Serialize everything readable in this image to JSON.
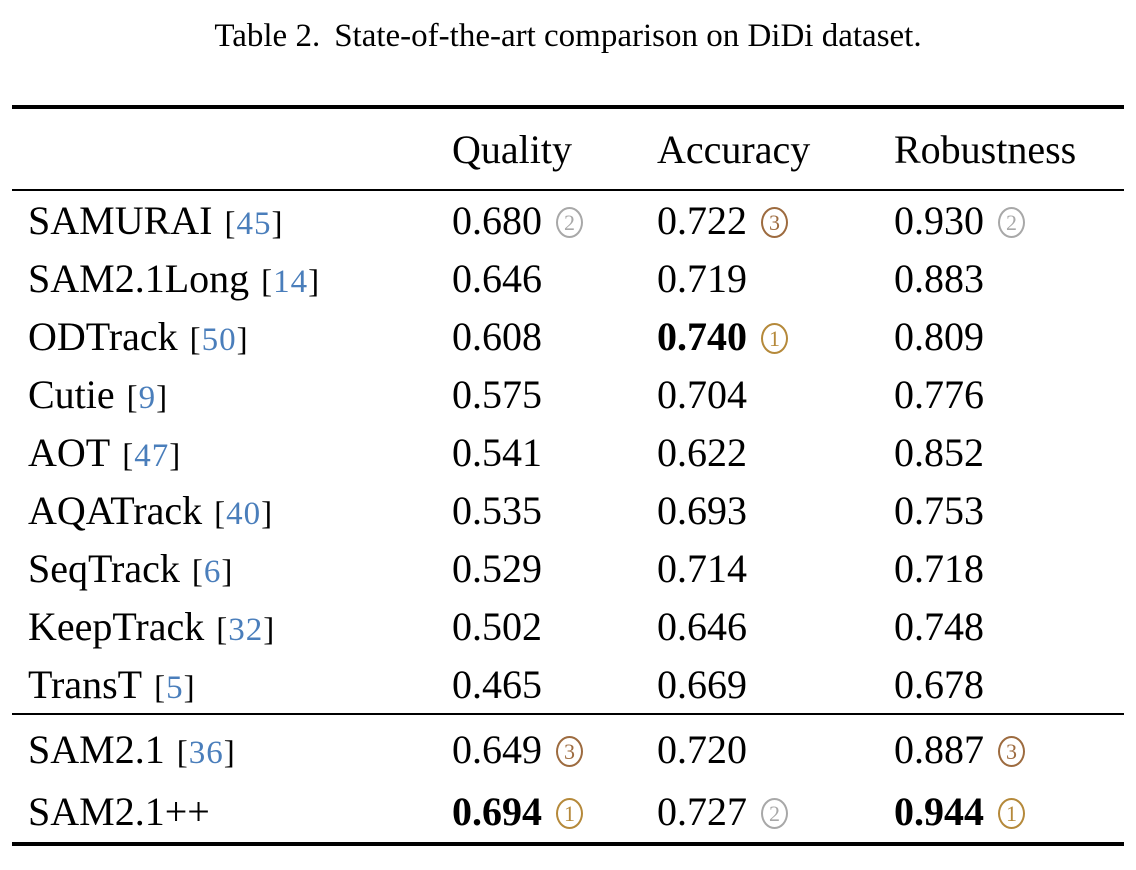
{
  "caption": {
    "label": "Table 2.",
    "text": "State-of-the-art comparison on DiDi dataset."
  },
  "colors": {
    "rank1": "#b5893a",
    "rank2": "#a8a8a8",
    "rank3": "#9d6b3f",
    "cite": "#4a7ebb"
  },
  "icons": {
    "rank1": "circled-digit-one-gold",
    "rank2": "circled-digit-two-silver",
    "rank3": "circled-digit-three-bronze"
  },
  "table": {
    "columns": [
      "Quality",
      "Accuracy",
      "Robustness"
    ],
    "groups": [
      {
        "rows": [
          {
            "method": "SAMURAI",
            "cite": "45",
            "cells": [
              {
                "value": "0.680",
                "bold": false,
                "rank": 2
              },
              {
                "value": "0.722",
                "bold": false,
                "rank": 3
              },
              {
                "value": "0.930",
                "bold": false,
                "rank": 2
              }
            ]
          },
          {
            "method": "SAM2.1Long",
            "cite": "14",
            "cells": [
              {
                "value": "0.646",
                "bold": false,
                "rank": null
              },
              {
                "value": "0.719",
                "bold": false,
                "rank": null
              },
              {
                "value": "0.883",
                "bold": false,
                "rank": null
              }
            ]
          },
          {
            "method": "ODTrack",
            "cite": "50",
            "cells": [
              {
                "value": "0.608",
                "bold": false,
                "rank": null
              },
              {
                "value": "0.740",
                "bold": true,
                "rank": 1
              },
              {
                "value": "0.809",
                "bold": false,
                "rank": null
              }
            ]
          },
          {
            "method": "Cutie",
            "cite": "9",
            "cells": [
              {
                "value": "0.575",
                "bold": false,
                "rank": null
              },
              {
                "value": "0.704",
                "bold": false,
                "rank": null
              },
              {
                "value": "0.776",
                "bold": false,
                "rank": null
              }
            ]
          },
          {
            "method": "AOT",
            "cite": "47",
            "cells": [
              {
                "value": "0.541",
                "bold": false,
                "rank": null
              },
              {
                "value": "0.622",
                "bold": false,
                "rank": null
              },
              {
                "value": "0.852",
                "bold": false,
                "rank": null
              }
            ]
          },
          {
            "method": "AQATrack",
            "cite": "40",
            "cells": [
              {
                "value": "0.535",
                "bold": false,
                "rank": null
              },
              {
                "value": "0.693",
                "bold": false,
                "rank": null
              },
              {
                "value": "0.753",
                "bold": false,
                "rank": null
              }
            ]
          },
          {
            "method": "SeqTrack",
            "cite": "6",
            "cells": [
              {
                "value": "0.529",
                "bold": false,
                "rank": null
              },
              {
                "value": "0.714",
                "bold": false,
                "rank": null
              },
              {
                "value": "0.718",
                "bold": false,
                "rank": null
              }
            ]
          },
          {
            "method": "KeepTrack",
            "cite": "32",
            "cells": [
              {
                "value": "0.502",
                "bold": false,
                "rank": null
              },
              {
                "value": "0.646",
                "bold": false,
                "rank": null
              },
              {
                "value": "0.748",
                "bold": false,
                "rank": null
              }
            ]
          },
          {
            "method": "TransT",
            "cite": "5",
            "cells": [
              {
                "value": "0.465",
                "bold": false,
                "rank": null
              },
              {
                "value": "0.669",
                "bold": false,
                "rank": null
              },
              {
                "value": "0.678",
                "bold": false,
                "rank": null
              }
            ]
          }
        ]
      },
      {
        "rows": [
          {
            "method": "SAM2.1",
            "cite": "36",
            "cells": [
              {
                "value": "0.649",
                "bold": false,
                "rank": 3
              },
              {
                "value": "0.720",
                "bold": false,
                "rank": null
              },
              {
                "value": "0.887",
                "bold": false,
                "rank": 3
              }
            ]
          },
          {
            "method": "SAM2.1++",
            "cite": null,
            "cells": [
              {
                "value": "0.694",
                "bold": true,
                "rank": 1
              },
              {
                "value": "0.727",
                "bold": false,
                "rank": 2
              },
              {
                "value": "0.944",
                "bold": true,
                "rank": 1
              }
            ]
          }
        ]
      }
    ]
  }
}
